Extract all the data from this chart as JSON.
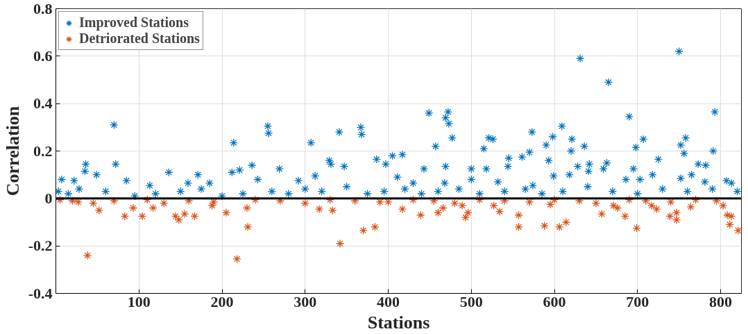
{
  "chart_data": {
    "type": "scatter",
    "xlabel": "Stations",
    "ylabel": "Correlation",
    "xlim": [
      0,
      825
    ],
    "ylim": [
      -0.4,
      0.8
    ],
    "xticks": [
      100,
      200,
      300,
      400,
      500,
      600,
      700,
      800
    ],
    "yticks": [
      -0.4,
      -0.2,
      0,
      0.2,
      0.4,
      0.6,
      0.8
    ],
    "grid": true,
    "legend": "top left",
    "marker": "cross",
    "ref_lines": [
      {
        "axis": "y",
        "value": 0,
        "color": "#000000"
      }
    ],
    "series": [
      {
        "name": "Improved Stations",
        "color": "#0072bd",
        "x": [
          70,
          72,
          36,
          35,
          49,
          7,
          22,
          85,
          136,
          214,
          255,
          256,
          212,
          221,
          236,
          269,
          243,
          171,
          159,
          113,
          185,
          307,
          341,
          367,
          368,
          449,
          472,
          469,
          473,
          477,
          457,
          329,
          331,
          347,
          386,
          397,
          405,
          417,
          443,
          469,
          500,
          500,
          515,
          521,
          526,
          518,
          545,
          544,
          561,
          570,
          573,
          312,
          292,
          411,
          430,
          532,
          468,
          590,
          598,
          609,
          593,
          621,
          620,
          631,
          636,
          665,
          690,
          698,
          707,
          725,
          750,
          752,
          758,
          756,
          793,
          791,
          628,
          642,
          641,
          659,
          663,
          695,
          773,
          782,
          765,
          807,
          813,
          599,
          618,
          686,
          703,
          718,
          752,
          781,
          574,
          3,
          15,
          28,
          60,
          95,
          120,
          150,
          175,
          200,
          225,
          260,
          280,
          300,
          320,
          350,
          375,
          395,
          420,
          440,
          460,
          485,
          510,
          540,
          565,
          585,
          610,
          640,
          670,
          700,
          730,
          760,
          790,
          820
        ],
        "values": [
          0.31,
          0.145,
          0.145,
          0.115,
          0.1,
          0.08,
          0.075,
          0.075,
          0.11,
          0.235,
          0.305,
          0.275,
          0.11,
          0.12,
          0.14,
          0.125,
          0.08,
          0.1,
          0.065,
          0.055,
          0.065,
          0.235,
          0.28,
          0.3,
          0.27,
          0.36,
          0.365,
          0.34,
          0.315,
          0.255,
          0.22,
          0.16,
          0.145,
          0.135,
          0.165,
          0.145,
          0.18,
          0.185,
          0.125,
          0.135,
          0.125,
          0.08,
          0.21,
          0.255,
          0.25,
          0.125,
          0.17,
          0.135,
          0.175,
          0.195,
          0.28,
          0.095,
          0.075,
          0.09,
          0.065,
          0.07,
          0.065,
          0.225,
          0.26,
          0.305,
          0.16,
          0.25,
          0.2,
          0.59,
          0.22,
          0.49,
          0.345,
          0.215,
          0.25,
          0.165,
          0.62,
          0.225,
          0.255,
          0.19,
          0.365,
          0.2,
          0.135,
          0.145,
          0.115,
          0.125,
          0.15,
          0.125,
          0.145,
          0.14,
          0.1,
          0.075,
          0.065,
          0.095,
          0.1,
          0.08,
          0.08,
          0.1,
          0.085,
          0.07,
          0.055,
          0.03,
          0.02,
          0.04,
          0.03,
          0.01,
          0.02,
          0.03,
          0.04,
          0.01,
          0.02,
          0.03,
          0.02,
          0.04,
          0.03,
          0.05,
          0.02,
          0.03,
          0.04,
          0.02,
          0.03,
          0.04,
          0.02,
          0.03,
          0.04,
          0.02,
          0.03,
          0.05,
          0.03,
          0.02,
          0.04,
          0.03,
          0.04,
          0.03
        ]
      },
      {
        "name": "Detriorated Stations",
        "color": "#d95319",
        "x": [
          38,
          218,
          231,
          205,
          83,
          104,
          52,
          93,
          148,
          144,
          155,
          167,
          117,
          27,
          188,
          230,
          342,
          370,
          384,
          317,
          333,
          417,
          439,
          460,
          466,
          493,
          496,
          489,
          527,
          534,
          557,
          557,
          588,
          606,
          614,
          657,
          671,
          676,
          685,
          699,
          717,
          723,
          739,
          747,
          747,
          764,
          803,
          808,
          813,
          811,
          821,
          595,
          390,
          5,
          20,
          45,
          70,
          110,
          130,
          160,
          190,
          240,
          270,
          300,
          330,
          360,
          400,
          430,
          455,
          480,
          510,
          540,
          570,
          600,
          630,
          650,
          690,
          710,
          740,
          770,
          795
        ],
        "values": [
          -0.24,
          -0.255,
          -0.12,
          -0.06,
          -0.075,
          -0.075,
          -0.05,
          -0.04,
          -0.09,
          -0.075,
          -0.065,
          -0.075,
          -0.04,
          -0.015,
          -0.03,
          -0.04,
          -0.19,
          -0.135,
          -0.12,
          -0.045,
          -0.05,
          -0.045,
          -0.07,
          -0.06,
          -0.04,
          -0.08,
          -0.06,
          -0.03,
          -0.03,
          -0.055,
          -0.07,
          -0.12,
          -0.115,
          -0.12,
          -0.1,
          -0.065,
          -0.03,
          -0.04,
          -0.075,
          -0.125,
          -0.03,
          -0.045,
          -0.075,
          -0.06,
          -0.09,
          -0.035,
          -0.03,
          -0.07,
          -0.075,
          -0.11,
          -0.135,
          -0.025,
          -0.015,
          -0.005,
          -0.01,
          -0.02,
          -0.01,
          -0.005,
          -0.02,
          -0.01,
          -0.015,
          -0.005,
          -0.01,
          -0.02,
          -0.005,
          -0.01,
          -0.015,
          -0.005,
          -0.01,
          -0.02,
          -0.005,
          -0.01,
          -0.015,
          -0.005,
          -0.01,
          -0.02,
          -0.005,
          -0.01,
          -0.015,
          -0.005,
          -0.01
        ]
      }
    ]
  }
}
